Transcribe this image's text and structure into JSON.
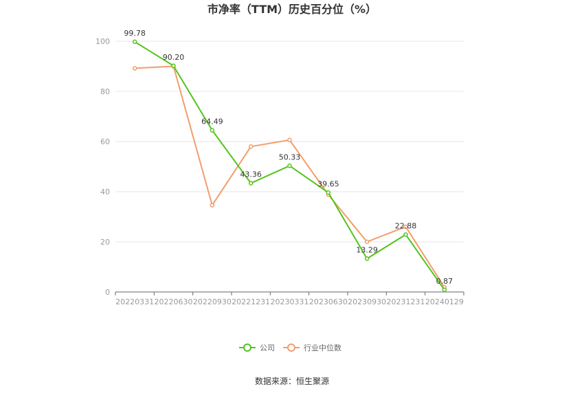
{
  "chart_data": {
    "type": "line",
    "title": "市净率（TTM）历史百分位（%）",
    "xlabel": "",
    "ylabel": "",
    "ylim": [
      0,
      100
    ],
    "yticks": [
      "0",
      "20",
      "40",
      "60",
      "80",
      "100"
    ],
    "categories": [
      "20220331",
      "20220630",
      "20220930",
      "20221231",
      "20230331",
      "20230630",
      "20230930",
      "20231231",
      "20240129"
    ],
    "series": [
      {
        "name": "公司",
        "color": "#52c41a",
        "values": [
          99.78,
          90.2,
          64.49,
          43.36,
          50.33,
          39.65,
          13.29,
          22.88,
          0.87
        ],
        "labels": [
          "99.78",
          "90.20",
          "64.49",
          "43.36",
          "50.33",
          "39.65",
          "13.29",
          "22.88",
          "0.87"
        ]
      },
      {
        "name": "行业中位数",
        "color": "#f39c6b",
        "values": [
          89.2,
          90.0,
          34.6,
          58.0,
          60.6,
          38.8,
          20.0,
          26.0,
          1.9
        ]
      }
    ],
    "grid": true,
    "legend": "bottom-center"
  },
  "footer": {
    "source": "数据来源：恒生聚源"
  }
}
